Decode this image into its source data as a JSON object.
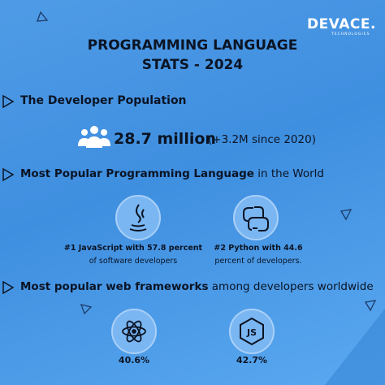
{
  "logo": {
    "name": "DEVACE.",
    "tagline": "TECHNOLOGIES"
  },
  "title": [
    "PROGRAMMING LANGUAGE",
    "STATS - 2024"
  ],
  "population": {
    "heading": "The Developer Population",
    "value": "28.7 million",
    "change": "(+3.2M since 2020)"
  },
  "languages": {
    "heading_bold": "Most Popular Programming Language",
    "heading_rest": " in the World",
    "items": [
      {
        "bold": "#1 JavaScript with 57.8 percent",
        "rest": "of software developers"
      },
      {
        "bold": "#2 Python with 44.6",
        "rest": "percent of developers."
      }
    ]
  },
  "frameworks": {
    "heading_bold": "Most popular web frameworks",
    "heading_rest": " among developers worldwide",
    "items": [
      "40.6%",
      "42.7%"
    ]
  }
}
